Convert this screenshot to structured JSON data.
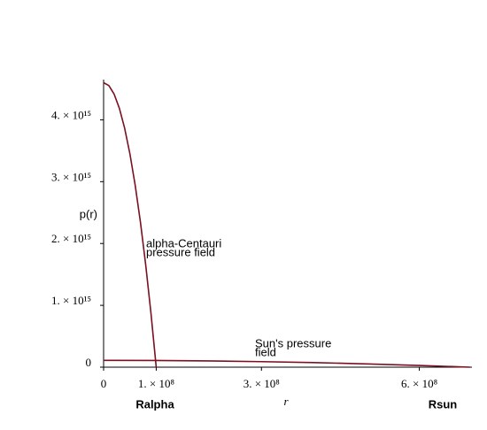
{
  "chart_data": {
    "type": "line",
    "y_label": "p(r)",
    "x_label": "r",
    "series": [
      {
        "color": "#7a1020",
        "x": [
          0,
          10000000,
          20000000,
          30000000,
          40000000,
          50000000,
          60000000,
          70000000,
          80000000,
          90000000,
          100000000
        ],
        "values": [
          4600000000000000.0,
          4554000000000000.0,
          4416000000000000.0,
          4186000000000000.0,
          3864000000000000.0,
          3450000000000000.0,
          2944000000000000.0,
          2346000000000000.0,
          1656000000000000.0,
          874000000000000.0,
          0
        ]
      },
      {
        "color": "#7a1020",
        "x": [
          0,
          100000000,
          200000000,
          300000000,
          400000000,
          500000000,
          600000000,
          696000000
        ],
        "values": [
          110000000000000.0,
          107700000000000.0,
          100900000000000.0,
          89600000000000.0,
          73700000000000.0,
          53300000000000.0,
          28400000000000.0,
          0
        ]
      }
    ],
    "annotations": [
      {
        "lines": [
          "alpha-Centauri",
          "pressure field"
        ]
      },
      {
        "lines": [
          "Sun's pressure",
          "field"
        ]
      }
    ],
    "axis_notes": [
      "Ralpha",
      "Rsun"
    ],
    "xlim": [
      0,
      700000000
    ],
    "ylim": [
      0,
      4650000000000000.0
    ],
    "xticks": [
      0,
      {
        "value": 100000000,
        "label": "1. × 10⁸"
      },
      {
        "value": 300000000,
        "label": "3. × 10⁸"
      },
      {
        "value": 600000000,
        "label": "6. × 10⁸"
      }
    ],
    "yticks": [
      0,
      {
        "value": 1000000000000000.0,
        "label": "1. × 10¹⁵"
      },
      {
        "value": 2000000000000000.0,
        "label": "2. × 10¹⁵"
      },
      {
        "value": 3000000000000000.0,
        "label": "3. × 10¹⁵"
      },
      {
        "value": 4000000000000000.0,
        "label": "4. × 10¹⁵"
      }
    ]
  }
}
